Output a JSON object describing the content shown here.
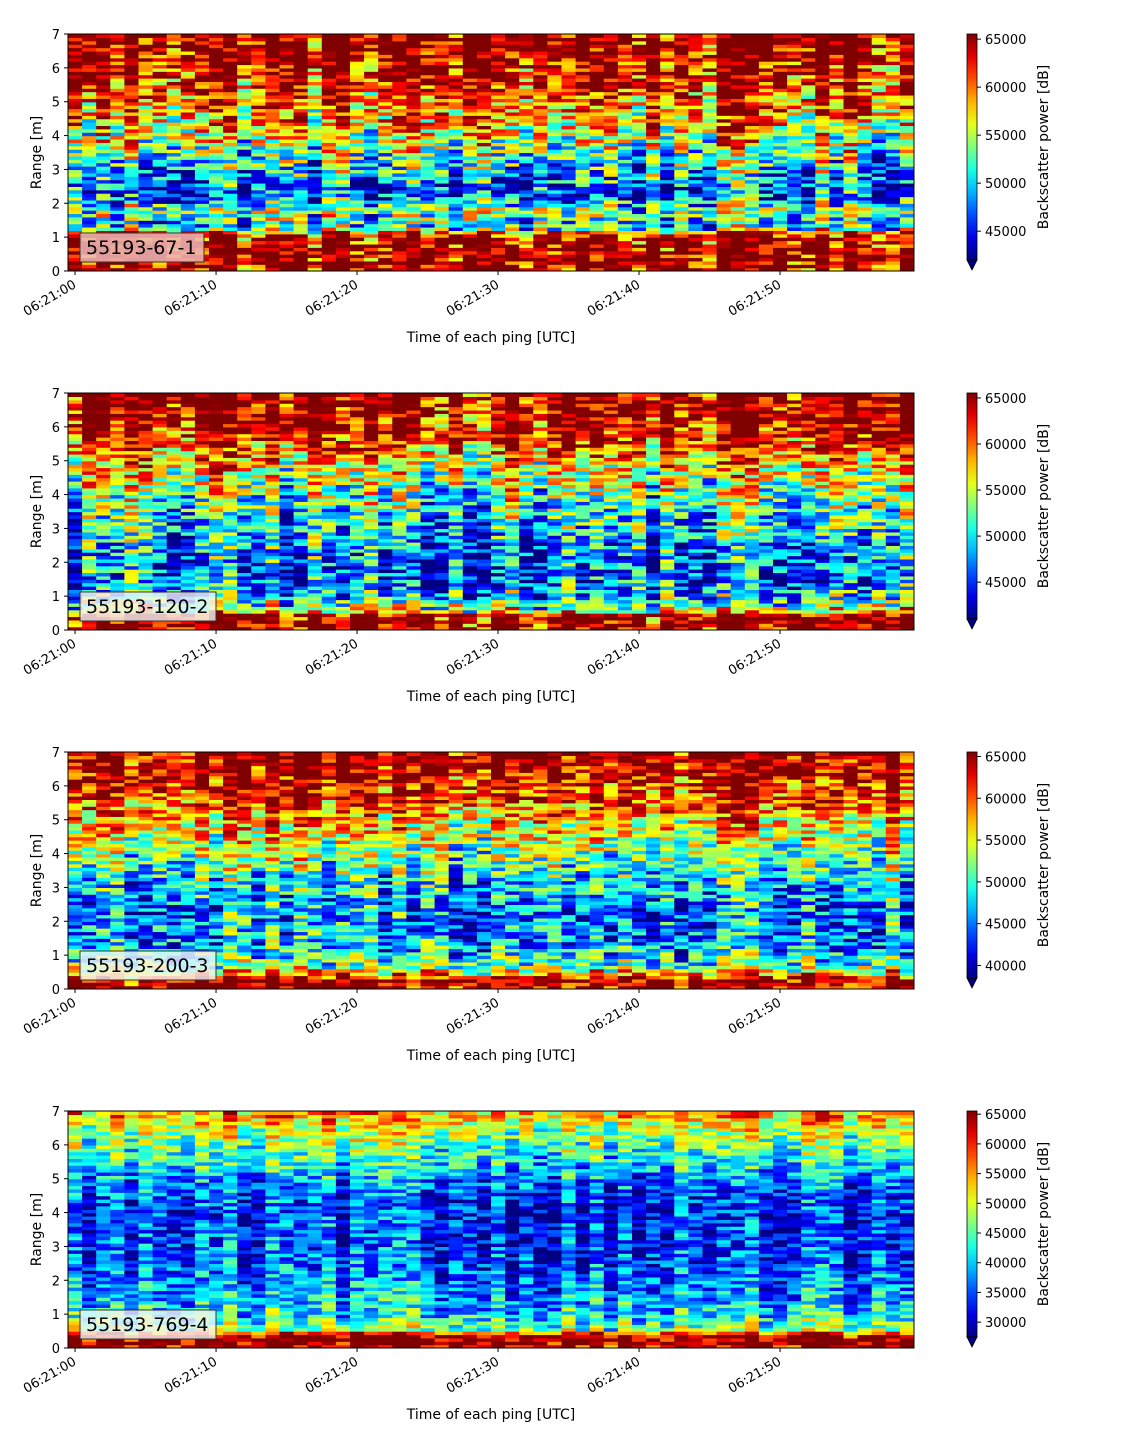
{
  "chart_data": [
    {
      "type": "heatmap",
      "instrument": "55193-67-1",
      "xlabel": "Time of each ping [UTC]",
      "ylabel": "Range [m]",
      "colorbar_label": "Backscatter power [dB]",
      "colormap": "jet",
      "xlim": [
        "06:20:59.5",
        "06:21:59.5"
      ],
      "ylim": [
        0,
        7
      ],
      "xticks": [
        "06:21:00",
        "06:21:10",
        "06:21:20",
        "06:21:30",
        "06:21:40",
        "06:21:50"
      ],
      "yticks": [
        0,
        1,
        2,
        3,
        4,
        5,
        6,
        7
      ],
      "clim": [
        42000,
        65535
      ],
      "colorbar_ticks": [
        45000,
        50000,
        55000,
        60000,
        65000
      ],
      "profile": [
        {
          "range": 0.0,
          "value": 65000
        },
        {
          "range": 0.2,
          "value": 65500
        },
        {
          "range": 0.6,
          "value": 65500
        },
        {
          "range": 1.1,
          "value": 63000
        },
        {
          "range": 1.3,
          "value": 50000
        },
        {
          "range": 1.8,
          "value": 54000
        },
        {
          "range": 2.3,
          "value": 46000
        },
        {
          "range": 3.0,
          "value": 50000
        },
        {
          "range": 3.8,
          "value": 55000
        },
        {
          "range": 4.6,
          "value": 59000
        },
        {
          "range": 5.5,
          "value": 63000
        },
        {
          "range": 6.3,
          "value": 65000
        },
        {
          "range": 7.0,
          "value": 65500
        }
      ]
    },
    {
      "type": "heatmap",
      "instrument": "55193-120-2",
      "xlabel": "Time of each ping [UTC]",
      "ylabel": "Range [m]",
      "colorbar_label": "Backscatter power [dB]",
      "colormap": "jet",
      "xlim": [
        "06:20:59.5",
        "06:21:59.5"
      ],
      "ylim": [
        0,
        7
      ],
      "xticks": [
        "06:21:00",
        "06:21:10",
        "06:21:20",
        "06:21:30",
        "06:21:40",
        "06:21:50"
      ],
      "yticks": [
        0,
        1,
        2,
        3,
        4,
        5,
        6,
        7
      ],
      "clim": [
        41000,
        65535
      ],
      "colorbar_ticks": [
        45000,
        50000,
        55000,
        60000,
        65000
      ],
      "profile": [
        {
          "range": 0.0,
          "value": 65500
        },
        {
          "range": 0.45,
          "value": 65000
        },
        {
          "range": 0.55,
          "value": 56000
        },
        {
          "range": 0.9,
          "value": 50000
        },
        {
          "range": 1.5,
          "value": 46000
        },
        {
          "range": 2.2,
          "value": 46500
        },
        {
          "range": 3.0,
          "value": 49000
        },
        {
          "range": 4.0,
          "value": 52000
        },
        {
          "range": 4.8,
          "value": 56000
        },
        {
          "range": 5.6,
          "value": 62000
        },
        {
          "range": 6.3,
          "value": 64500
        },
        {
          "range": 7.0,
          "value": 65500
        }
      ]
    },
    {
      "type": "heatmap",
      "instrument": "55193-200-3",
      "xlabel": "Time of each ping [UTC]",
      "ylabel": "Range [m]",
      "colorbar_label": "Backscatter power [dB]",
      "colormap": "jet",
      "xlim": [
        "06:20:59.5",
        "06:21:59.5"
      ],
      "ylim": [
        0,
        7
      ],
      "xticks": [
        "06:21:00",
        "06:21:10",
        "06:21:20",
        "06:21:30",
        "06:21:40",
        "06:21:50"
      ],
      "yticks": [
        0,
        1,
        2,
        3,
        4,
        5,
        6,
        7
      ],
      "clim": [
        38500,
        65535
      ],
      "colorbar_ticks": [
        40000,
        45000,
        50000,
        55000,
        60000,
        65000
      ],
      "profile": [
        {
          "range": 0.0,
          "value": 65000
        },
        {
          "range": 0.3,
          "value": 65000
        },
        {
          "range": 0.45,
          "value": 57000
        },
        {
          "range": 0.8,
          "value": 50000
        },
        {
          "range": 1.5,
          "value": 46000
        },
        {
          "range": 2.3,
          "value": 45000
        },
        {
          "range": 3.2,
          "value": 48000
        },
        {
          "range": 4.0,
          "value": 52000
        },
        {
          "range": 4.8,
          "value": 56000
        },
        {
          "range": 5.6,
          "value": 61000
        },
        {
          "range": 6.4,
          "value": 64000
        },
        {
          "range": 7.0,
          "value": 65500
        }
      ]
    },
    {
      "type": "heatmap",
      "instrument": "55193-769-4",
      "xlabel": "Time of each ping [UTC]",
      "ylabel": "Range [m]",
      "colorbar_label": "Backscatter power [dB]",
      "colormap": "jet",
      "xlim": [
        "06:20:59.5",
        "06:21:59.5"
      ],
      "ylim": [
        0,
        7
      ],
      "xticks": [
        "06:21:00",
        "06:21:10",
        "06:21:20",
        "06:21:30",
        "06:21:40",
        "06:21:50"
      ],
      "yticks": [
        0,
        1,
        2,
        3,
        4,
        5,
        6,
        7
      ],
      "clim": [
        27500,
        65535
      ],
      "colorbar_ticks": [
        30000,
        35000,
        40000,
        45000,
        50000,
        55000,
        60000,
        65000
      ],
      "profile": [
        {
          "range": 0.0,
          "value": 60000
        },
        {
          "range": 0.15,
          "value": 65500
        },
        {
          "range": 0.4,
          "value": 64000
        },
        {
          "range": 0.55,
          "value": 46000
        },
        {
          "range": 1.0,
          "value": 41000
        },
        {
          "range": 2.0,
          "value": 36000
        },
        {
          "range": 3.0,
          "value": 34000
        },
        {
          "range": 4.2,
          "value": 33000
        },
        {
          "range": 5.0,
          "value": 37000
        },
        {
          "range": 5.8,
          "value": 44000
        },
        {
          "range": 6.5,
          "value": 49000
        },
        {
          "range": 7.0,
          "value": 56000
        }
      ]
    }
  ]
}
